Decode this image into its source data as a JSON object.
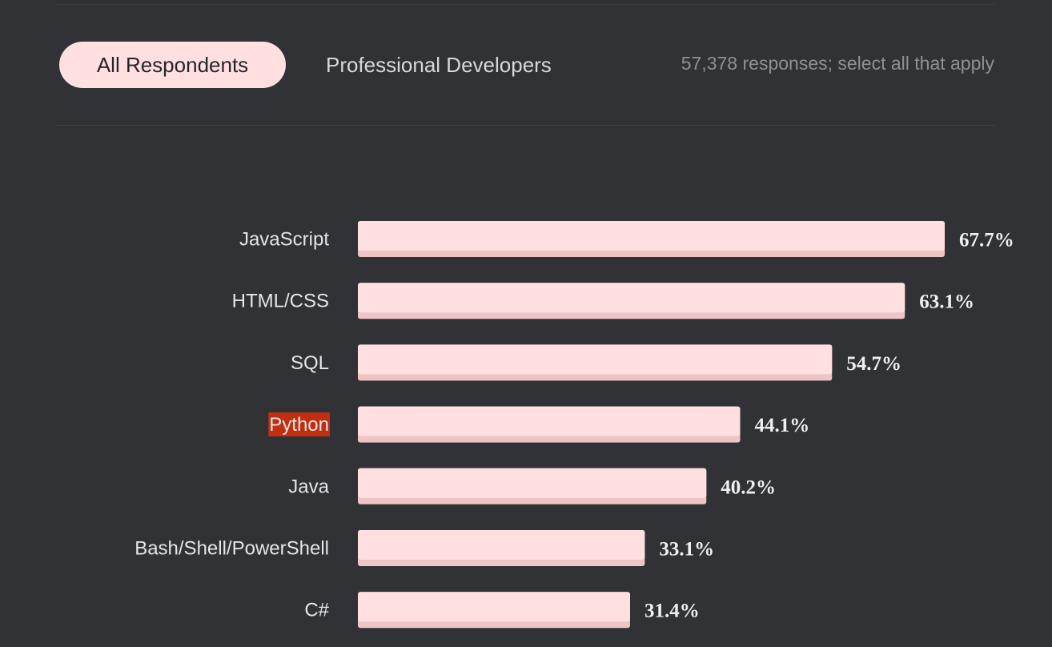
{
  "tabs": {
    "all_label": "All Respondents",
    "pro_label": "Professional Developers"
  },
  "meta": {
    "responses_text": "57,378 responses; select all that apply"
  },
  "colors": {
    "background": "#303236",
    "bar": "#ffdfdf",
    "bar_shadow": "#eec4c4",
    "highlight": "#c22e10"
  },
  "chart_data": {
    "type": "bar",
    "orientation": "horizontal",
    "categories": [
      "JavaScript",
      "HTML/CSS",
      "SQL",
      "Python",
      "Java",
      "Bash/Shell/PowerShell",
      "C#"
    ],
    "values": [
      67.7,
      63.1,
      54.7,
      44.1,
      40.2,
      33.1,
      31.4
    ],
    "value_labels": [
      "67.7%",
      "63.1%",
      "54.7%",
      "44.1%",
      "40.2%",
      "33.1%",
      "31.4%"
    ],
    "highlighted_category": "Python",
    "unit": "%"
  }
}
